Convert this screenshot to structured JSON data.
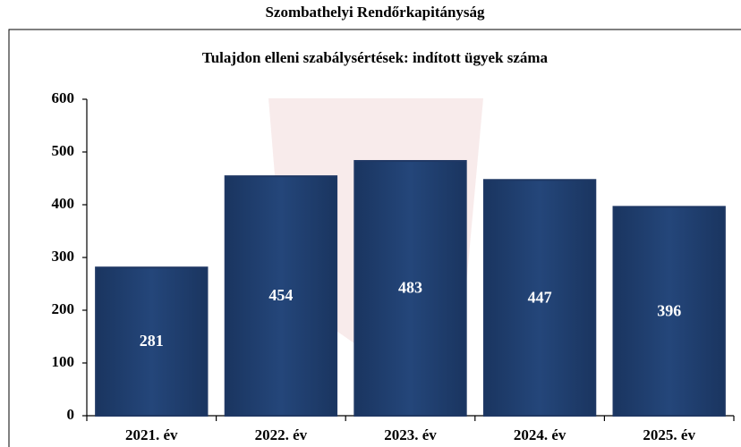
{
  "chart_data": {
    "type": "bar",
    "page_title": "Szombathelyi Rendőrkapitányság",
    "title": "Tulajdon elleni szabálysértések: indított ügyek száma",
    "categories": [
      "2021. év",
      "2022. év",
      "2023. év",
      "2024. év",
      "2025. év"
    ],
    "values": [
      281,
      454,
      483,
      447,
      396
    ],
    "color": "#1f3864",
    "ylim": [
      0,
      600
    ],
    "yticks": [
      0,
      100,
      200,
      300,
      400,
      500,
      600
    ],
    "grid": false
  }
}
